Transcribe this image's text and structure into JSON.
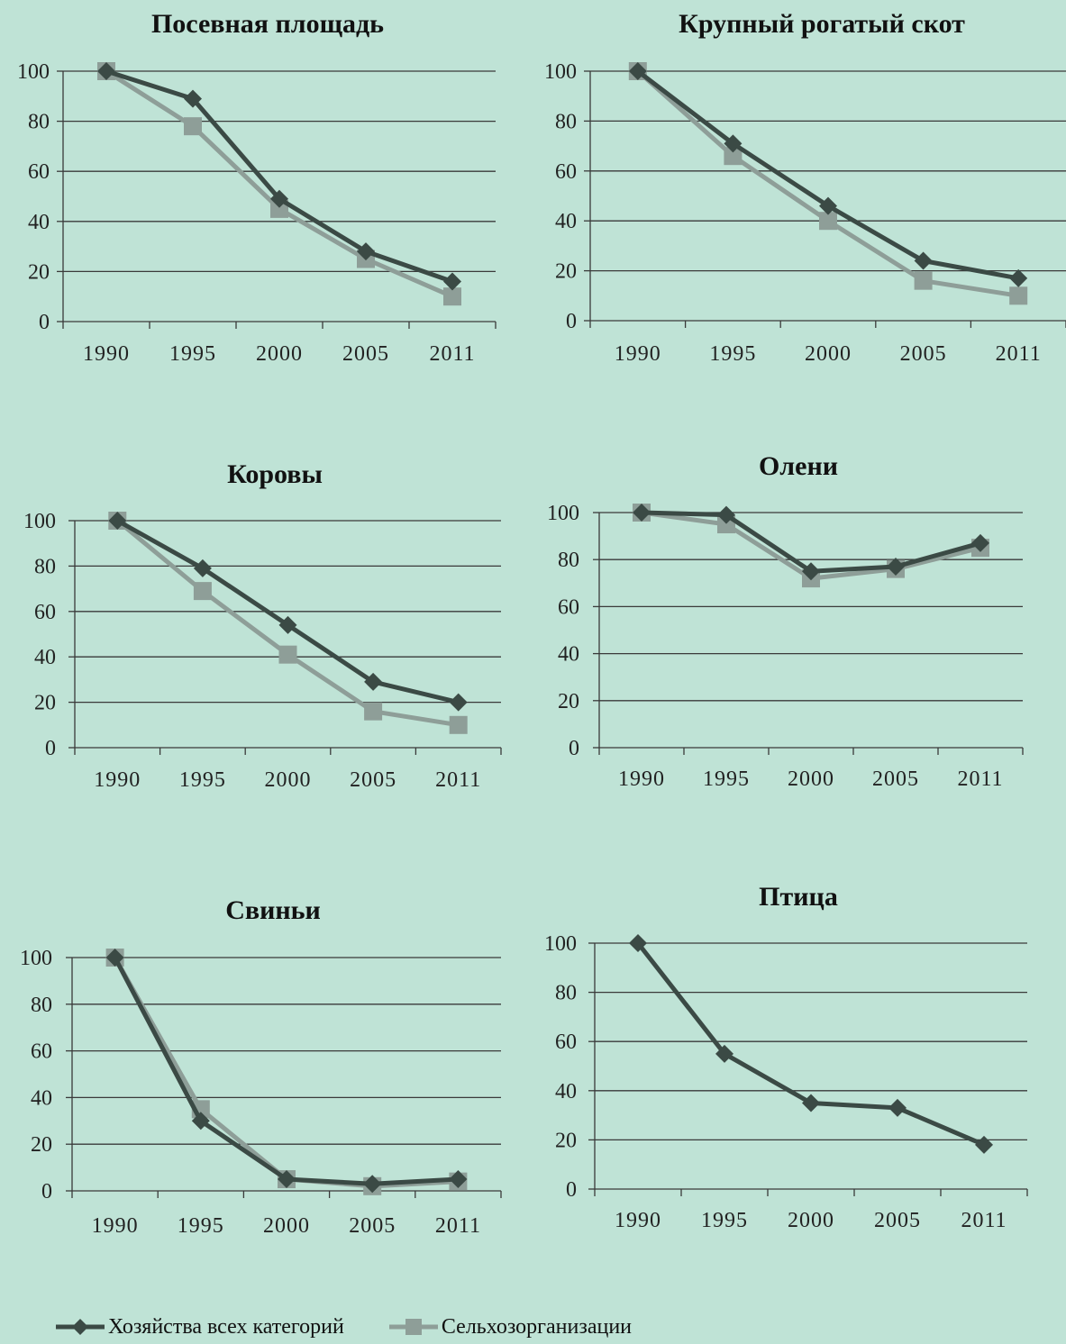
{
  "colors": {
    "background": "#bfe3d6",
    "series_all": "#3b4a45",
    "series_agro": "#8e9e98",
    "grid": "#3a3a3a"
  },
  "legend": {
    "items": [
      {
        "label": "Хозяйства всех категорий",
        "color": "#3b4a45",
        "marker": "diamond"
      },
      {
        "label": "Сельхозорганизации",
        "color": "#8e9e98",
        "marker": "square"
      }
    ]
  },
  "chart_data": [
    {
      "type": "line",
      "title": "Посевная площадь",
      "categories": [
        "1990",
        "1995",
        "2000",
        "2005",
        "2011"
      ],
      "ylim": [
        0,
        100
      ],
      "yticks": [
        "0",
        "20",
        "40",
        "60",
        "80",
        "100"
      ],
      "grid": true,
      "series": [
        {
          "name": "Хозяйства всех категорий",
          "values": [
            100,
            89,
            49,
            28,
            16
          ]
        },
        {
          "name": "Сельхозорганизации",
          "values": [
            100,
            78,
            45,
            25,
            10
          ]
        }
      ]
    },
    {
      "type": "line",
      "title": "Крупный рогатый скот",
      "categories": [
        "1990",
        "1995",
        "2000",
        "2005",
        "2011"
      ],
      "ylim": [
        0,
        100
      ],
      "yticks": [
        "0",
        "20",
        "40",
        "60",
        "80",
        "100"
      ],
      "grid": true,
      "series": [
        {
          "name": "Хозяйства всех категорий",
          "values": [
            100,
            71,
            46,
            24,
            17
          ]
        },
        {
          "name": "Сельхозорганизации",
          "values": [
            100,
            66,
            40,
            16,
            10
          ]
        }
      ]
    },
    {
      "type": "line",
      "title": "Коровы",
      "categories": [
        "1990",
        "1995",
        "2000",
        "2005",
        "2011"
      ],
      "ylim": [
        0,
        100
      ],
      "yticks": [
        "0",
        "20",
        "40",
        "60",
        "80",
        "100"
      ],
      "grid": true,
      "series": [
        {
          "name": "Хозяйства всех категорий",
          "values": [
            100,
            79,
            54,
            29,
            20
          ]
        },
        {
          "name": "Сельхозорганизации",
          "values": [
            100,
            69,
            41,
            16,
            10
          ]
        }
      ]
    },
    {
      "type": "line",
      "title": "Олени",
      "categories": [
        "1990",
        "1995",
        "2000",
        "2005",
        "2011"
      ],
      "ylim": [
        0,
        100
      ],
      "yticks": [
        "0",
        "20",
        "40",
        "60",
        "80",
        "100"
      ],
      "grid": true,
      "series": [
        {
          "name": "Хозяйства всех категорий",
          "values": [
            100,
            99,
            75,
            77,
            87
          ]
        },
        {
          "name": "Сельхозорганизации",
          "values": [
            100,
            95,
            72,
            76,
            85
          ]
        }
      ]
    },
    {
      "type": "line",
      "title": "Свиньи",
      "categories": [
        "1990",
        "1995",
        "2000",
        "2005",
        "2011"
      ],
      "ylim": [
        0,
        100
      ],
      "yticks": [
        "0",
        "20",
        "40",
        "60",
        "80",
        "100"
      ],
      "grid": true,
      "series": [
        {
          "name": "Хозяйства всех категорий",
          "values": [
            100,
            30,
            5,
            3,
            5
          ]
        },
        {
          "name": "Сельхозорганизации",
          "values": [
            100,
            35,
            5,
            2,
            4
          ]
        }
      ]
    },
    {
      "type": "line",
      "title": "Птица",
      "categories": [
        "1990",
        "1995",
        "2000",
        "2005",
        "2011"
      ],
      "ylim": [
        0,
        100
      ],
      "yticks": [
        "0",
        "20",
        "40",
        "60",
        "80",
        "100"
      ],
      "grid": true,
      "series": [
        {
          "name": "Хозяйства всех категорий",
          "values": [
            100,
            55,
            35,
            33,
            18
          ]
        }
      ]
    }
  ]
}
